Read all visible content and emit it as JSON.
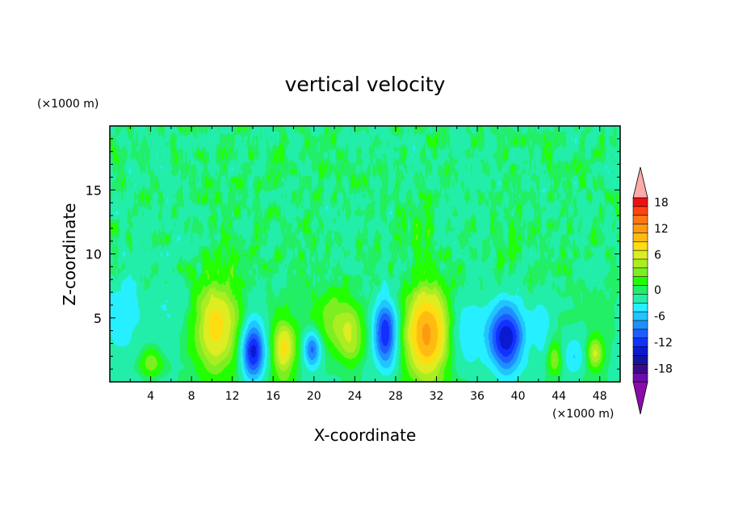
{
  "chart_data": {
    "type": "heatmap",
    "title": "vertical velocity",
    "xlabel": "X-coordinate",
    "ylabel": "Z-coordinate",
    "x_unit": "(×1000 m)",
    "y_unit": "(×1000 m)",
    "xlim": [
      0,
      50
    ],
    "ylim": [
      0,
      20
    ],
    "x_ticks": [
      4,
      8,
      12,
      16,
      20,
      24,
      28,
      32,
      36,
      40,
      44,
      48
    ],
    "y_ticks": [
      5,
      10,
      15
    ],
    "colorbar": {
      "levels": [
        -20,
        -18,
        -16,
        -14,
        -12,
        -10,
        -8,
        -6,
        -4,
        -2,
        0,
        2,
        4,
        6,
        8,
        10,
        12,
        14,
        16,
        18,
        20
      ],
      "tick_values": [
        18,
        12,
        6,
        0,
        -6,
        -12,
        -18
      ],
      "colors": [
        "#7b1fa2",
        "#4a148c",
        "#1a0dab",
        "#0d1fd6",
        "#1636ff",
        "#1e6bff",
        "#1fa2ff",
        "#1ad4ff",
        "#22ffee",
        "#33ffbb",
        "#1aee88",
        "#22ee22",
        "#88ee22",
        "#bbee22",
        "#eeee22",
        "#ffcc22",
        "#ffaa11",
        "#ff8811",
        "#ff5511",
        "#ff2211",
        "#ee1111",
        "#ffaaaa"
      ],
      "over_color": "#ffaaaa",
      "under_color": "#8a0ca8"
    },
    "features": [
      {
        "x": 10.5,
        "z": 4.5,
        "amp": 9.0,
        "sx": 1.6,
        "sz": 2.6
      },
      {
        "x": 14.0,
        "z": 2.5,
        "amp": -13.0,
        "sx": 0.8,
        "sz": 1.6
      },
      {
        "x": 17.0,
        "z": 2.6,
        "amp": 8.5,
        "sx": 0.8,
        "sz": 1.6
      },
      {
        "x": 19.8,
        "z": 2.6,
        "amp": -9.0,
        "sx": 0.6,
        "sz": 1.0
      },
      {
        "x": 21.8,
        "z": 5.0,
        "amp": 4.0,
        "sx": 1.4,
        "sz": 1.6
      },
      {
        "x": 23.5,
        "z": 3.5,
        "amp": 5.0,
        "sx": 1.0,
        "sz": 1.5
      },
      {
        "x": 27.0,
        "z": 3.8,
        "amp": -12.0,
        "sx": 0.8,
        "sz": 1.8
      },
      {
        "x": 31.0,
        "z": 3.8,
        "amp": 13.0,
        "sx": 1.5,
        "sz": 2.6
      },
      {
        "x": 35.0,
        "z": 4.0,
        "amp": -4.0,
        "sx": 1.2,
        "sz": 2.0
      },
      {
        "x": 38.8,
        "z": 3.5,
        "amp": -14.0,
        "sx": 1.2,
        "sz": 1.8
      },
      {
        "x": 42.3,
        "z": 4.2,
        "amp": -3.0,
        "sx": 0.8,
        "sz": 1.6
      },
      {
        "x": 43.5,
        "z": 2.0,
        "amp": 5.0,
        "sx": 0.5,
        "sz": 0.9
      },
      {
        "x": 45.5,
        "z": 2.0,
        "amp": -4.0,
        "sx": 0.8,
        "sz": 1.0
      },
      {
        "x": 47.5,
        "z": 2.2,
        "amp": 6.0,
        "sx": 0.6,
        "sz": 0.9
      },
      {
        "x": 4.0,
        "z": 1.6,
        "amp": 4.0,
        "sx": 0.7,
        "sz": 0.8
      },
      {
        "x": 1.2,
        "z": 5.0,
        "amp": -3.5,
        "sx": 1.2,
        "sz": 2.5
      },
      {
        "x": 6.0,
        "z": 6.0,
        "amp": -2.0,
        "sx": 1.5,
        "sz": 2.0
      },
      {
        "x": 30.5,
        "z": 11.5,
        "amp": 2.0,
        "sx": 0.8,
        "sz": 1.2
      },
      {
        "x": 38.5,
        "z": 10.0,
        "amp": 2.0,
        "sx": 0.6,
        "sz": 1.2
      }
    ]
  }
}
